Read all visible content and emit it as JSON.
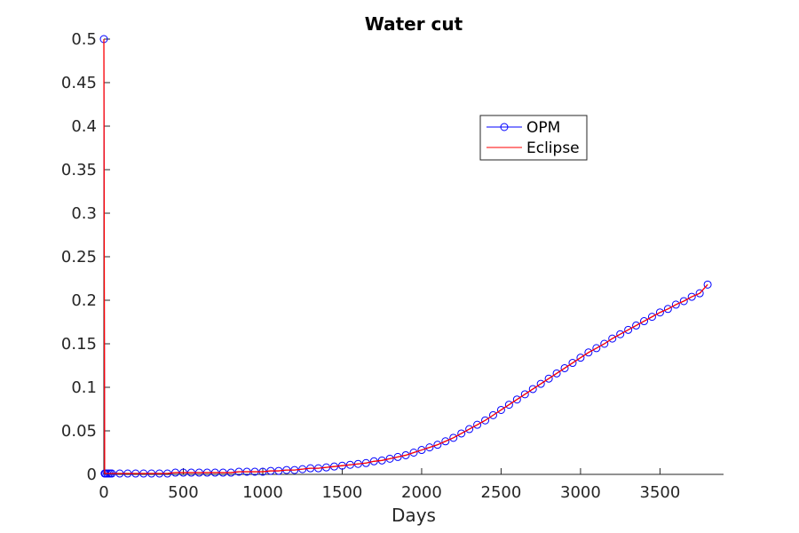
{
  "chart_data": {
    "type": "line",
    "title": "Water cut",
    "xlabel": "Days",
    "ylabel": "",
    "xlim": [
      0,
      3900
    ],
    "ylim": [
      0,
      0.5
    ],
    "xticks": [
      "0",
      "500",
      "1000",
      "1500",
      "2000",
      "2500",
      "3000",
      "3500"
    ],
    "yticks": [
      "0",
      "0.05",
      "0.1",
      "0.15",
      "0.2",
      "0.25",
      "0.3",
      "0.35",
      "0.4",
      "0.45",
      "0.5"
    ],
    "grid": false,
    "legend_position": "top-right",
    "x": [
      0,
      5,
      10,
      20,
      30,
      40,
      50,
      100,
      150,
      200,
      250,
      300,
      350,
      400,
      450,
      500,
      550,
      600,
      650,
      700,
      750,
      800,
      850,
      900,
      950,
      1000,
      1050,
      1100,
      1150,
      1200,
      1250,
      1300,
      1350,
      1400,
      1450,
      1500,
      1550,
      1600,
      1650,
      1700,
      1750,
      1800,
      1850,
      1900,
      1950,
      2000,
      2050,
      2100,
      2150,
      2200,
      2250,
      2300,
      2350,
      2400,
      2450,
      2500,
      2550,
      2600,
      2650,
      2700,
      2750,
      2800,
      2850,
      2900,
      2950,
      3000,
      3050,
      3100,
      3150,
      3200,
      3250,
      3300,
      3350,
      3400,
      3450,
      3500,
      3550,
      3600,
      3650,
      3700,
      3750,
      3800
    ],
    "series": [
      {
        "name": "OPM",
        "color": "#0000ff",
        "marker": "circle",
        "values": [
          0.5,
          0.001,
          0.001,
          0.001,
          0.001,
          0.001,
          0.001,
          0.001,
          0.001,
          0.001,
          0.001,
          0.001,
          0.001,
          0.001,
          0.002,
          0.002,
          0.002,
          0.002,
          0.002,
          0.002,
          0.002,
          0.002,
          0.003,
          0.003,
          0.003,
          0.003,
          0.004,
          0.004,
          0.005,
          0.005,
          0.006,
          0.007,
          0.007,
          0.008,
          0.009,
          0.01,
          0.011,
          0.012,
          0.013,
          0.015,
          0.016,
          0.018,
          0.02,
          0.022,
          0.025,
          0.028,
          0.031,
          0.034,
          0.038,
          0.042,
          0.047,
          0.052,
          0.057,
          0.062,
          0.068,
          0.074,
          0.08,
          0.086,
          0.092,
          0.098,
          0.104,
          0.11,
          0.116,
          0.122,
          0.128,
          0.134,
          0.14,
          0.145,
          0.15,
          0.156,
          0.161,
          0.166,
          0.171,
          0.176,
          0.181,
          0.186,
          0.19,
          0.195,
          0.199,
          0.204,
          0.208,
          0.218
        ]
      },
      {
        "name": "Eclipse",
        "color": "#ff0000",
        "marker": "none",
        "values": [
          0.5,
          0.001,
          0.001,
          0.001,
          0.001,
          0.001,
          0.001,
          0.001,
          0.001,
          0.001,
          0.001,
          0.001,
          0.001,
          0.001,
          0.002,
          0.002,
          0.002,
          0.002,
          0.002,
          0.002,
          0.002,
          0.002,
          0.003,
          0.003,
          0.003,
          0.003,
          0.004,
          0.004,
          0.005,
          0.005,
          0.006,
          0.007,
          0.007,
          0.008,
          0.009,
          0.01,
          0.011,
          0.012,
          0.013,
          0.015,
          0.016,
          0.018,
          0.02,
          0.022,
          0.025,
          0.028,
          0.031,
          0.034,
          0.038,
          0.042,
          0.047,
          0.052,
          0.057,
          0.062,
          0.068,
          0.074,
          0.08,
          0.086,
          0.092,
          0.098,
          0.104,
          0.11,
          0.116,
          0.122,
          0.128,
          0.134,
          0.14,
          0.145,
          0.15,
          0.156,
          0.161,
          0.166,
          0.171,
          0.176,
          0.181,
          0.186,
          0.19,
          0.195,
          0.199,
          0.204,
          0.208,
          0.218
        ]
      }
    ]
  }
}
